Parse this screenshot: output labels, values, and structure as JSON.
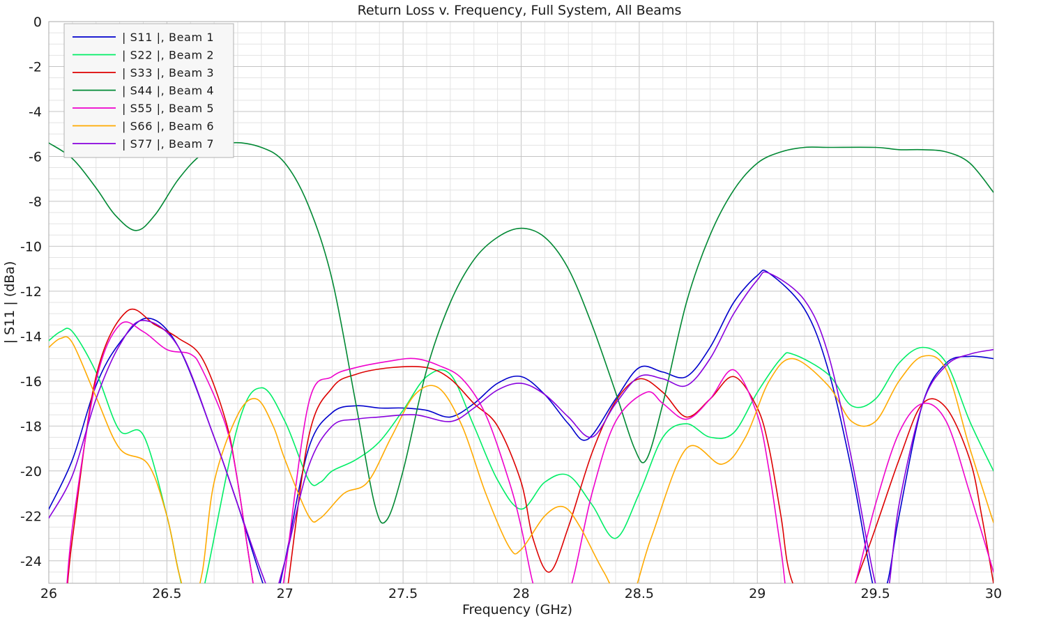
{
  "chart_data": {
    "type": "line",
    "title": "Return Loss v. Frequency, Full System, All Beams",
    "xlabel": "Frequency (GHz)",
    "ylabel": "| S11 | (dBa)",
    "xlim": [
      26,
      30
    ],
    "ylim": [
      -25,
      0
    ],
    "xticks": [
      26,
      26.5,
      27,
      27.5,
      28,
      28.5,
      29,
      29.5,
      30
    ],
    "xtick_labels": [
      "26",
      "26.5",
      "27",
      "27.5",
      "28",
      "28.5",
      "29",
      "29.5",
      "30"
    ],
    "yticks": [
      0,
      -2,
      -4,
      -6,
      -8,
      -10,
      -12,
      -14,
      -16,
      -18,
      -20,
      -22,
      -24
    ],
    "ytick_labels": [
      "0",
      "-2",
      "-4",
      "-6",
      "-8",
      "-10",
      "-12",
      "-14",
      "-16",
      "-18",
      "-20",
      "-22",
      "-24"
    ],
    "grid": true,
    "legend_position": "top-left",
    "series": [
      {
        "name": "| S11 |, Beam 1",
        "color": "#0000cc",
        "x": [
          26,
          26.1,
          26.2,
          26.3,
          26.42,
          26.55,
          26.7,
          26.8,
          26.9,
          26.95,
          27.0,
          27.1,
          27.2,
          27.3,
          27.4,
          27.5,
          27.6,
          27.7,
          27.8,
          27.9,
          28.0,
          28.1,
          28.2,
          28.28,
          28.4,
          28.5,
          28.6,
          28.7,
          28.8,
          28.9,
          29.0,
          29.05,
          29.2,
          29.3,
          29.4,
          29.5,
          29.55,
          29.6,
          29.7,
          29.8,
          29.9,
          30.0
        ],
        "y": [
          -21.7,
          -19.5,
          -16.2,
          -14.3,
          -13.2,
          -14.5,
          -18.5,
          -21.5,
          -24.8,
          -26.0,
          -24.0,
          -19.0,
          -17.4,
          -17.1,
          -17.2,
          -17.2,
          -17.3,
          -17.6,
          -17.0,
          -16.1,
          -15.8,
          -16.6,
          -17.9,
          -18.6,
          -16.8,
          -15.4,
          -15.6,
          -15.8,
          -14.5,
          -12.5,
          -11.3,
          -11.2,
          -12.8,
          -15.5,
          -20.0,
          -25.5,
          -25.0,
          -22.0,
          -17.0,
          -15.2,
          -14.9,
          -15.0
        ]
      },
      {
        "name": "| S22 |, Beam 2",
        "color": "#00ee66",
        "x": [
          26,
          26.05,
          26.1,
          26.2,
          26.3,
          26.4,
          26.5,
          26.55,
          26.6,
          26.65,
          26.8,
          26.9,
          27.0,
          27.1,
          27.15,
          27.2,
          27.3,
          27.4,
          27.5,
          27.6,
          27.7,
          27.8,
          27.9,
          28.0,
          28.1,
          28.2,
          28.3,
          28.4,
          28.5,
          28.6,
          28.7,
          28.8,
          28.9,
          29.0,
          29.1,
          29.15,
          29.3,
          29.4,
          29.5,
          29.6,
          29.7,
          29.8,
          29.9,
          30.0
        ],
        "y": [
          -14.2,
          -13.8,
          -13.8,
          -15.6,
          -18.2,
          -18.4,
          -22.0,
          -24.5,
          -26.5,
          -25.5,
          -18.0,
          -16.3,
          -17.8,
          -20.4,
          -20.5,
          -20.0,
          -19.5,
          -18.7,
          -17.3,
          -15.8,
          -15.7,
          -18.0,
          -20.4,
          -21.7,
          -20.5,
          -20.2,
          -21.5,
          -23.0,
          -21.0,
          -18.5,
          -17.9,
          -18.5,
          -18.3,
          -16.5,
          -15.0,
          -14.8,
          -15.7,
          -17.1,
          -16.8,
          -15.2,
          -14.5,
          -15.2,
          -17.8,
          -20.0
        ]
      },
      {
        "name": "| S33 |, Beam 3",
        "color": "#dd0000",
        "x": [
          26,
          26.06,
          26.1,
          26.2,
          26.33,
          26.45,
          26.55,
          26.65,
          26.75,
          26.8,
          26.85,
          26.9,
          26.95,
          27.0,
          27.1,
          27.2,
          27.3,
          27.45,
          27.6,
          27.7,
          27.8,
          27.9,
          28.0,
          28.05,
          28.12,
          28.2,
          28.3,
          28.4,
          28.5,
          28.6,
          28.7,
          28.8,
          28.9,
          29.0,
          29.05,
          29.1,
          29.15,
          29.3,
          29.45,
          29.6,
          29.7,
          29.8,
          29.9,
          29.95,
          30.0
        ],
        "y": [
          -26.0,
          -26.5,
          -23.0,
          -15.8,
          -12.9,
          -13.5,
          -14.1,
          -15.0,
          -17.8,
          -20.5,
          -24.0,
          -27.0,
          -28.0,
          -26.0,
          -18.5,
          -16.3,
          -15.7,
          -15.4,
          -15.4,
          -15.9,
          -17.0,
          -18.0,
          -20.5,
          -23.0,
          -24.5,
          -22.5,
          -19.2,
          -16.9,
          -15.9,
          -16.5,
          -17.6,
          -16.8,
          -15.8,
          -17.2,
          -19.0,
          -22.0,
          -25.0,
          -27.5,
          -24.0,
          -19.5,
          -17.0,
          -17.2,
          -19.5,
          -22.0,
          -25.0
        ]
      },
      {
        "name": "| S44 |, Beam 4",
        "color": "#008833",
        "x": [
          26,
          26.1,
          26.2,
          26.28,
          26.37,
          26.45,
          26.55,
          26.65,
          26.77,
          26.9,
          27.0,
          27.1,
          27.2,
          27.3,
          27.38,
          27.43,
          27.5,
          27.6,
          27.7,
          27.8,
          27.9,
          28.0,
          28.1,
          28.2,
          28.3,
          28.4,
          28.48,
          28.53,
          28.6,
          28.7,
          28.8,
          28.9,
          29.0,
          29.1,
          29.2,
          29.3,
          29.5,
          29.6,
          29.7,
          29.8,
          29.9,
          30.0
        ],
        "y": [
          -5.4,
          -6.1,
          -7.4,
          -8.6,
          -9.3,
          -8.6,
          -7.0,
          -5.9,
          -5.4,
          -5.6,
          -6.3,
          -8.2,
          -11.5,
          -17.0,
          -21.5,
          -22.2,
          -20.0,
          -15.5,
          -12.5,
          -10.6,
          -9.6,
          -9.2,
          -9.6,
          -11.0,
          -13.5,
          -16.5,
          -19.0,
          -19.5,
          -17.0,
          -12.5,
          -9.5,
          -7.5,
          -6.3,
          -5.8,
          -5.6,
          -5.6,
          -5.6,
          -5.7,
          -5.7,
          -5.8,
          -6.3,
          -7.6
        ]
      },
      {
        "name": "| S55 |, Beam 5",
        "color": "#ee00cc",
        "x": [
          26,
          26.06,
          26.1,
          26.2,
          26.3,
          26.4,
          26.5,
          26.6,
          26.65,
          26.75,
          26.8,
          26.85,
          26.9,
          26.95,
          27.0,
          27.1,
          27.2,
          27.3,
          27.45,
          27.55,
          27.65,
          27.75,
          27.85,
          27.95,
          28.0,
          28.05,
          28.1,
          28.2,
          28.3,
          28.4,
          28.53,
          28.6,
          28.7,
          28.8,
          28.9,
          29.0,
          29.05,
          29.1,
          29.15,
          29.3,
          29.4,
          29.5,
          29.6,
          29.7,
          29.8,
          29.9,
          30.0
        ],
        "y": [
          -26.0,
          -26.5,
          -22.5,
          -16.0,
          -13.5,
          -13.8,
          -14.6,
          -14.8,
          -15.5,
          -18.0,
          -20.5,
          -24.0,
          -27.0,
          -28.0,
          -24.5,
          -17.0,
          -15.8,
          -15.4,
          -15.1,
          -15.0,
          -15.3,
          -15.9,
          -17.5,
          -20.5,
          -22.5,
          -25.0,
          -26.5,
          -25.5,
          -21.0,
          -17.8,
          -16.5,
          -17.0,
          -17.7,
          -16.8,
          -15.5,
          -17.5,
          -20.0,
          -23.5,
          -26.5,
          -27.5,
          -25.5,
          -21.5,
          -18.3,
          -17.0,
          -17.8,
          -21.0,
          -24.5
        ]
      },
      {
        "name": "| S66 |, Beam 6",
        "color": "#ffaa00",
        "x": [
          26,
          26.05,
          26.1,
          26.2,
          26.3,
          26.42,
          26.5,
          26.55,
          26.6,
          26.65,
          26.7,
          26.8,
          26.88,
          26.95,
          27.0,
          27.1,
          27.15,
          27.25,
          27.35,
          27.45,
          27.55,
          27.65,
          27.75,
          27.85,
          27.95,
          28.0,
          28.1,
          28.18,
          28.25,
          28.35,
          28.45,
          28.55,
          28.7,
          28.85,
          28.95,
          29.05,
          29.15,
          29.3,
          29.4,
          29.5,
          29.6,
          29.7,
          29.8,
          29.9,
          30.0
        ],
        "y": [
          -14.5,
          -14.1,
          -14.3,
          -16.7,
          -19.0,
          -19.7,
          -22.0,
          -24.5,
          -26.0,
          -24.5,
          -20.5,
          -17.5,
          -16.8,
          -18.0,
          -19.5,
          -22.0,
          -22.1,
          -21.0,
          -20.5,
          -18.5,
          -16.6,
          -16.3,
          -18.0,
          -21.0,
          -23.4,
          -23.5,
          -22.0,
          -21.6,
          -22.5,
          -24.5,
          -26.0,
          -23.0,
          -19.0,
          -19.7,
          -18.5,
          -16.0,
          -15.0,
          -16.2,
          -17.8,
          -17.8,
          -16.0,
          -14.9,
          -15.5,
          -19.0,
          -22.3
        ]
      },
      {
        "name": "| S77 |, Beam 7",
        "color": "#8800dd",
        "x": [
          26,
          26.1,
          26.2,
          26.3,
          26.4,
          26.55,
          26.7,
          26.8,
          26.9,
          26.95,
          27.0,
          27.1,
          27.2,
          27.3,
          27.4,
          27.55,
          27.7,
          27.8,
          27.9,
          28.0,
          28.1,
          28.2,
          28.3,
          28.4,
          28.5,
          28.6,
          28.7,
          28.8,
          28.9,
          29.0,
          29.05,
          29.2,
          29.3,
          29.4,
          29.5,
          29.55,
          29.6,
          29.7,
          29.8,
          29.9,
          30.0
        ],
        "y": [
          -22.1,
          -20.2,
          -16.8,
          -14.4,
          -13.3,
          -14.5,
          -18.5,
          -21.5,
          -24.5,
          -25.5,
          -24.0,
          -19.8,
          -18.0,
          -17.7,
          -17.6,
          -17.5,
          -17.8,
          -17.2,
          -16.4,
          -16.1,
          -16.6,
          -17.6,
          -18.5,
          -17.0,
          -15.8,
          -15.9,
          -16.2,
          -15.0,
          -13.0,
          -11.5,
          -11.2,
          -12.4,
          -14.8,
          -19.5,
          -25.0,
          -25.5,
          -21.5,
          -17.0,
          -15.3,
          -14.8,
          -14.6
        ]
      }
    ]
  }
}
